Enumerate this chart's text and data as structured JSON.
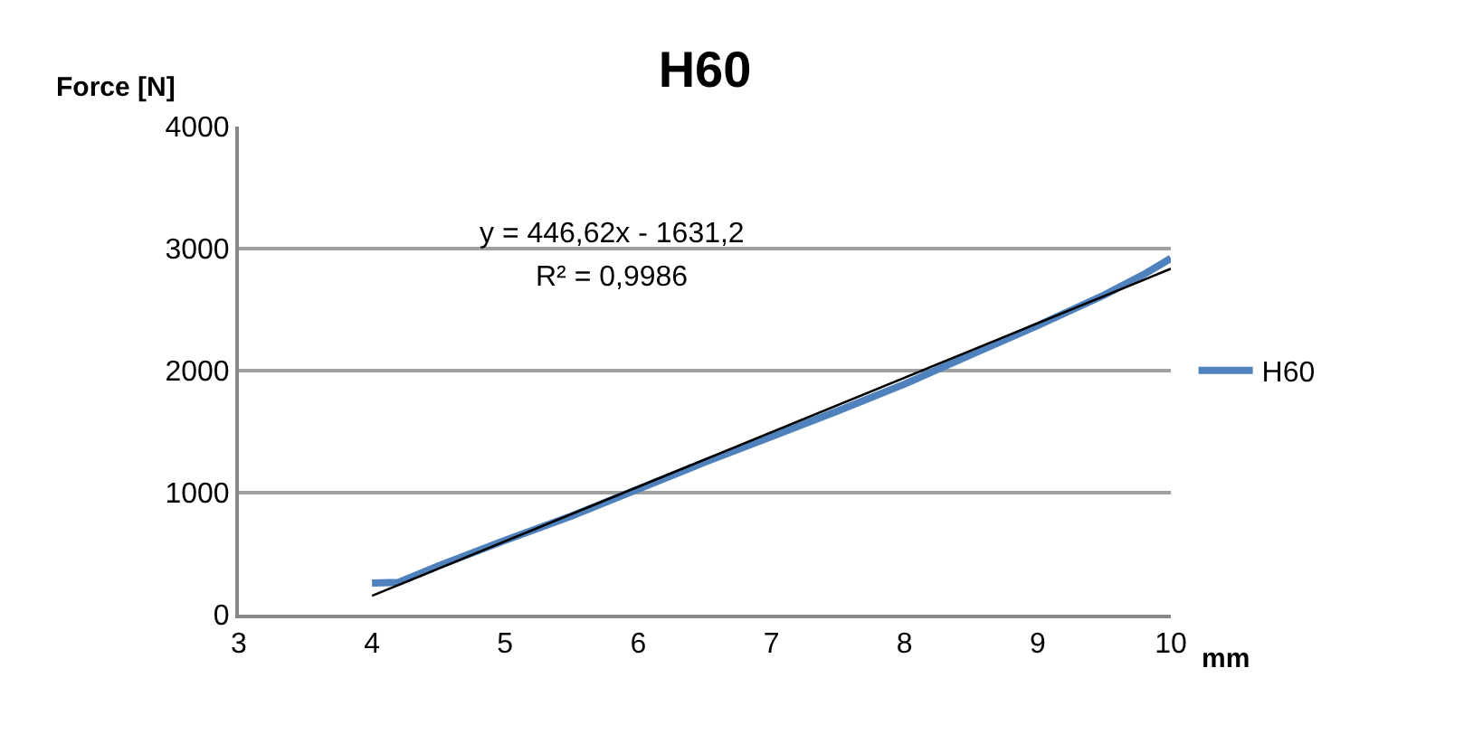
{
  "chart_data": {
    "type": "line",
    "title": "H60",
    "xlabel": "mm",
    "ylabel": "Force [N]",
    "xlim": [
      3,
      10
    ],
    "xticks": [
      3,
      4,
      5,
      6,
      7,
      8,
      9,
      10
    ],
    "ylim": [
      0,
      4000
    ],
    "yticks": [
      0,
      1000,
      2000,
      3000,
      4000
    ],
    "grid": "y",
    "legend": "right",
    "marker": "none",
    "line_style": "solid",
    "annotations": [
      "y = 446,62x - 1631,2",
      "R² = 0,9986"
    ],
    "series": [
      {
        "name": "H60",
        "color": "#4f81bd",
        "x": [
          4,
          4.2,
          4.5,
          5,
          5.5,
          6,
          6.5,
          7,
          7.5,
          8,
          8.5,
          9,
          9.5,
          9.8,
          10
        ],
        "values": [
          260,
          265,
          400,
          610,
          810,
          1030,
          1250,
          1460,
          1670,
          1890,
          2130,
          2370,
          2620,
          2790,
          2920
        ]
      },
      {
        "type": "line",
        "color": "#000000",
        "x": [
          4,
          10
        ],
        "values": [
          155,
          2835
        ]
      }
    ]
  }
}
